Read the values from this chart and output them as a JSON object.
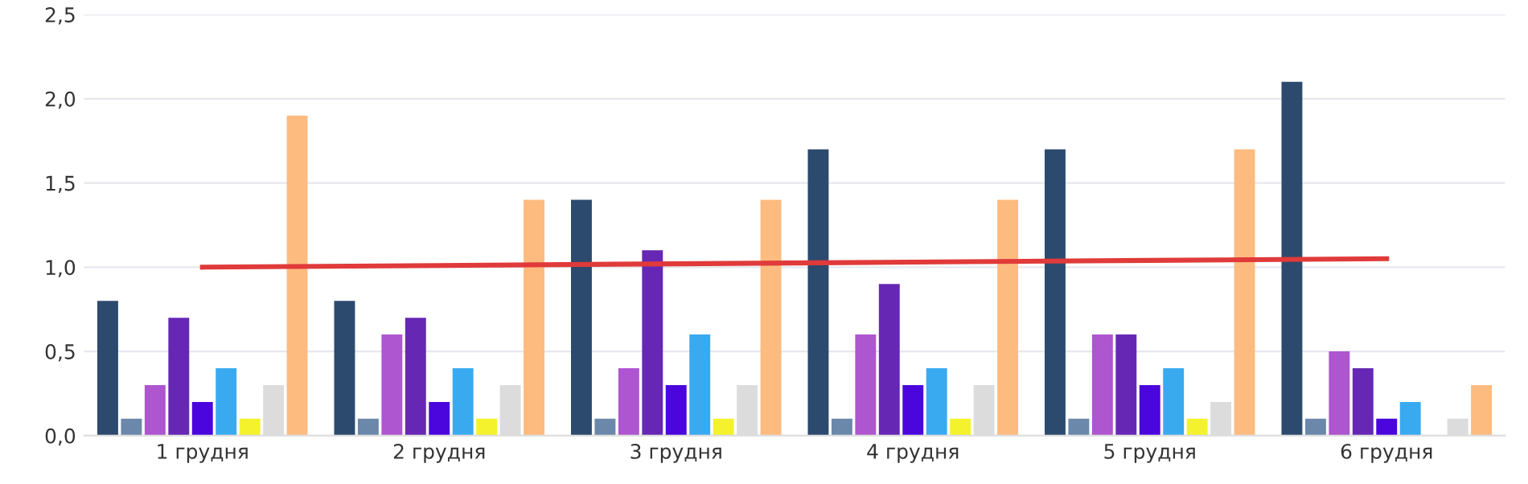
{
  "chart_data": {
    "type": "bar",
    "categories": [
      "1 грудня",
      "2 грудня",
      "3 грудня",
      "4 грудня",
      "5 грудня",
      "6 грудня"
    ],
    "series": [
      {
        "color": "#2c4a6e",
        "values": [
          0.8,
          0.8,
          1.4,
          1.7,
          1.7,
          2.1
        ]
      },
      {
        "color": "#6b88aa",
        "values": [
          0.1,
          0.1,
          0.1,
          0.1,
          0.1,
          0.1
        ]
      },
      {
        "color": "#ae55d0",
        "values": [
          0.3,
          0.6,
          0.4,
          0.6,
          0.6,
          0.5
        ]
      },
      {
        "color": "#6628b4",
        "values": [
          0.7,
          0.7,
          1.1,
          0.9,
          0.6,
          0.4
        ]
      },
      {
        "color": "#4a06dc",
        "values": [
          0.2,
          0.2,
          0.3,
          0.3,
          0.3,
          0.1
        ]
      },
      {
        "color": "#3aaaf0",
        "values": [
          0.4,
          0.4,
          0.6,
          0.4,
          0.4,
          0.2
        ]
      },
      {
        "color": "#f4f22c",
        "values": [
          0.1,
          0.1,
          0.1,
          0.1,
          0.1,
          null
        ]
      },
      {
        "color": "#dcdcdc",
        "values": [
          0.3,
          0.3,
          0.3,
          0.3,
          0.2,
          0.1
        ]
      },
      {
        "color": "#fdbb80",
        "values": [
          1.9,
          1.4,
          1.4,
          1.4,
          1.7,
          0.3
        ]
      },
      {
        "type": "line",
        "color": "#e03a3a",
        "values": [
          1.0,
          1.01,
          1.02,
          1.03,
          1.04,
          1.05
        ]
      }
    ],
    "ylim": [
      0,
      2.5
    ],
    "yticks": [
      {
        "value": 0,
        "label": "0,0"
      },
      {
        "value": 0.5,
        "label": "0,5"
      },
      {
        "value": 1,
        "label": "1,0"
      },
      {
        "value": 1.5,
        "label": "1,5"
      },
      {
        "value": 2,
        "label": "2,0"
      },
      {
        "value": 2.5,
        "label": "2,5"
      }
    ],
    "grid": "y"
  }
}
